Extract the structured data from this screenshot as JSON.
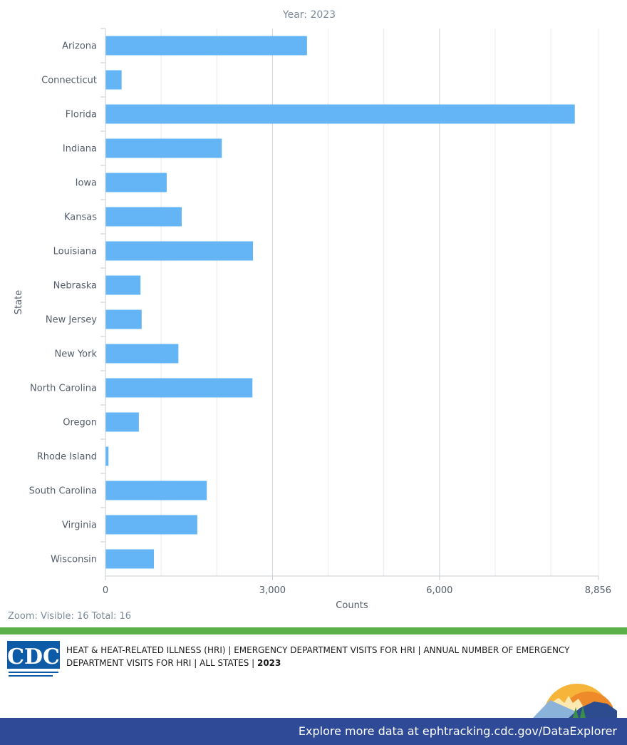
{
  "chart_data": {
    "type": "bar",
    "orientation": "horizontal",
    "title": "Year: 2023",
    "xlabel": "Counts",
    "ylabel": "State",
    "categories": [
      "Arizona",
      "Connecticut",
      "Florida",
      "Indiana",
      "Iowa",
      "Kansas",
      "Louisiana",
      "Nebraska",
      "New Jersey",
      "New York",
      "North Carolina",
      "Oregon",
      "Rhode Island",
      "South Carolina",
      "Virginia",
      "Wisconsin"
    ],
    "values": [
      3620,
      290,
      8430,
      2090,
      1100,
      1370,
      2650,
      630,
      650,
      1310,
      2640,
      600,
      55,
      1820,
      1650,
      870
    ],
    "xlim": [
      0,
      8856
    ],
    "xticks": [
      "0",
      "3,000",
      "6,000",
      "8,856"
    ],
    "xtick_values": [
      0,
      3000,
      6000,
      8856
    ],
    "grid": true,
    "bar_color": "#64b5f6"
  },
  "zoom_status": "Zoom: Visible: 16 Total: 16",
  "footer": {
    "logo_text": "CDC",
    "description": "HEAT & HEAT-RELATED ILLNESS (HRI) | EMERGENCY DEPARTMENT VISITS FOR HRI | ANNUAL NUMBER OF EMERGENCY DEPARTMENT VISITS FOR HRI | ALL STATES | ",
    "description_year": "2023",
    "link_text": "Explore more data at ephtracking.cdc.gov/DataExplorer"
  },
  "colors": {
    "accent_green": "#5bb04a",
    "footer_blue": "#2f4b97",
    "cdc_blue": "#0d5aa7"
  }
}
